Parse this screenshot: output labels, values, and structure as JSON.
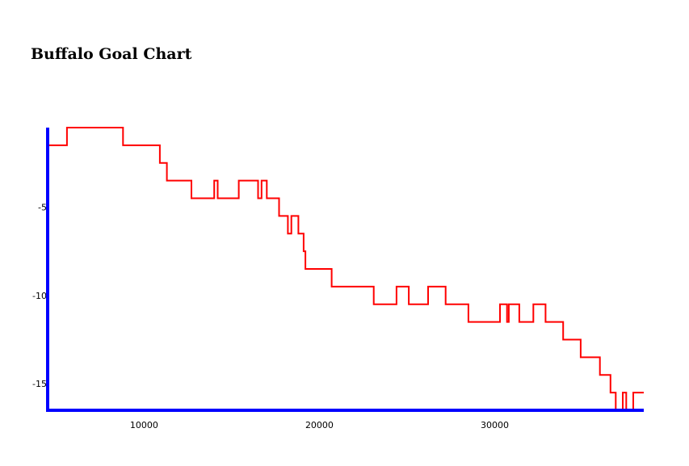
{
  "chart_data": {
    "type": "line",
    "step": true,
    "title": "Buffalo Goal Chart",
    "xlabel": "",
    "ylabel": "",
    "xlim": [
      4500,
      38500
    ],
    "ylim": [
      -16.5,
      -0.5
    ],
    "x_ticks": [
      10000,
      20000,
      30000
    ],
    "y_ticks": [
      -5,
      -10,
      -15
    ],
    "grid": false,
    "series": [
      {
        "color": "#ff0000",
        "points": [
          [
            4500,
            -1.5
          ],
          [
            5600,
            -0.5
          ],
          [
            8800,
            -1.5
          ],
          [
            10900,
            -2.5
          ],
          [
            11300,
            -3.5
          ],
          [
            12700,
            -4.5
          ],
          [
            14000,
            -3.5
          ],
          [
            14200,
            -4.5
          ],
          [
            15400,
            -3.5
          ],
          [
            16500,
            -4.5
          ],
          [
            16700,
            -3.5
          ],
          [
            17000,
            -4.5
          ],
          [
            17700,
            -5.5
          ],
          [
            18200,
            -6.5
          ],
          [
            18400,
            -5.5
          ],
          [
            18800,
            -6.5
          ],
          [
            19100,
            -7.5
          ],
          [
            19200,
            -8.5
          ],
          [
            20700,
            -9.5
          ],
          [
            23100,
            -10.5
          ],
          [
            24400,
            -9.5
          ],
          [
            25100,
            -10.5
          ],
          [
            26200,
            -9.5
          ],
          [
            27200,
            -10.5
          ],
          [
            28500,
            -11.5
          ],
          [
            30300,
            -10.5
          ],
          [
            30700,
            -11.5
          ],
          [
            30800,
            -10.5
          ],
          [
            31400,
            -11.5
          ],
          [
            32200,
            -10.5
          ],
          [
            32900,
            -11.5
          ],
          [
            33900,
            -12.5
          ],
          [
            34900,
            -13.5
          ],
          [
            36000,
            -14.5
          ],
          [
            36600,
            -15.5
          ],
          [
            36900,
            -16.5
          ],
          [
            37300,
            -15.5
          ],
          [
            37500,
            -16.5
          ],
          [
            37900,
            -15.5
          ],
          [
            38500,
            -15.5
          ]
        ]
      }
    ],
    "axis_color": "#0000ff"
  }
}
